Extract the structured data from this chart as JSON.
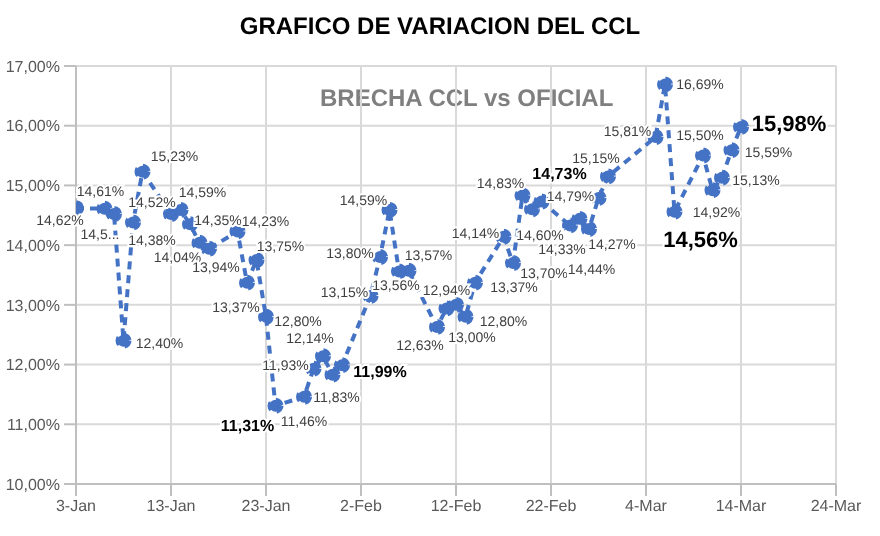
{
  "chart_data": {
    "type": "line",
    "title": "GRAFICO DE VARIACION DEL CCL",
    "subtitle": "BRECHA CCL vs OFICIAL",
    "x": [
      "--01-03",
      "--01-06",
      "--01-07",
      "--01-08",
      "--01-09",
      "--01-10",
      "--01-13",
      "--01-14",
      "--01-15",
      "--01-16",
      "--01-17",
      "--01-20",
      "--01-21",
      "--01-22",
      "--01-23",
      "--01-24",
      "--01-27",
      "--01-28",
      "--01-29",
      "--01-30",
      "--01-31",
      "--02-03",
      "--02-04",
      "--02-05",
      "--02-06",
      "--02-07",
      "--02-10",
      "--02-11",
      "--02-12",
      "--02-13",
      "--02-14",
      "--02-17",
      "--02-18",
      "--02-19",
      "--02-20",
      "--02-21",
      "--02-24",
      "--02-25",
      "--02-26",
      "--02-27",
      "--02-28",
      "--03-05",
      "--03-06",
      "--03-07",
      "--03-10",
      "--03-11",
      "--03-12",
      "--03-13",
      "--03-14"
    ],
    "series": [
      {
        "color": "#4472c4",
        "values": [
          14.62,
          14.61,
          14.52,
          12.4,
          14.38,
          15.23,
          14.52,
          14.59,
          14.35,
          14.04,
          13.94,
          14.23,
          13.37,
          13.75,
          12.8,
          11.31,
          11.46,
          11.93,
          12.14,
          11.83,
          11.99,
          13.15,
          13.8,
          14.59,
          13.56,
          13.57,
          12.63,
          12.94,
          13.0,
          12.8,
          13.37,
          14.14,
          13.7,
          14.83,
          14.6,
          14.73,
          14.33,
          14.44,
          14.27,
          14.79,
          15.15,
          15.81,
          16.69,
          14.56,
          15.5,
          14.92,
          15.13,
          15.59,
          15.98
        ],
        "value_labels": [
          "14,62%",
          "14,61%",
          "14,5...",
          "12,40%",
          "14,38%",
          "15,23%",
          "14,52%",
          "14,59%",
          "14,35%",
          "14,04%",
          "13,94%",
          "14,23%",
          "13,37%",
          "13,75%",
          "12,80%",
          "11,31%",
          "11,46%",
          "11,93%",
          "12,14%",
          "11,83%",
          "11,99%",
          "13,15%",
          "13,80%",
          "14,59%",
          "13,56%",
          "13,57%",
          "12,63%",
          "12,94%",
          "13,00%",
          "12,80%",
          "13,37%",
          "14,14%",
          "13,70%",
          "14,83%",
          "14,60%",
          "14,73%",
          "14,33%",
          "14,44%",
          "14,27%",
          "14,79%",
          "15,15%",
          "15,81%",
          "16,69%",
          "14,56%",
          "15,50%",
          "14,92%",
          "15,13%",
          "15,59%",
          "15,98%"
        ]
      }
    ],
    "xlim": [
      "--01-03",
      "--03-24"
    ],
    "xticks": [
      {
        "value": "--01-03",
        "label": "3-Jan"
      },
      {
        "value": "--01-13",
        "label": "13-Jan"
      },
      {
        "value": "--01-23",
        "label": "23-Jan"
      },
      {
        "value": "--02-02",
        "label": "2-Feb"
      },
      {
        "value": "--02-12",
        "label": "12-Feb"
      },
      {
        "value": "--02-22",
        "label": "22-Feb"
      },
      {
        "value": "--03-04",
        "label": "4-Mar"
      },
      {
        "value": "--03-14",
        "label": "14-Mar"
      },
      {
        "value": "--03-24",
        "label": "24-Mar"
      }
    ],
    "ylim": [
      10,
      17
    ],
    "yticks": [
      {
        "value": 10,
        "label": "10,00%"
      },
      {
        "value": 11,
        "label": "11,00%"
      },
      {
        "value": 12,
        "label": "12,00%"
      },
      {
        "value": 13,
        "label": "13,00%"
      },
      {
        "value": 14,
        "label": "14,00%"
      },
      {
        "value": 15,
        "label": "15,00%"
      },
      {
        "value": 16,
        "label": "16,00%"
      },
      {
        "value": 17,
        "label": "17,00%"
      }
    ],
    "grid": true,
    "marker": "circle",
    "line_style": "dashed",
    "legend": false
  }
}
